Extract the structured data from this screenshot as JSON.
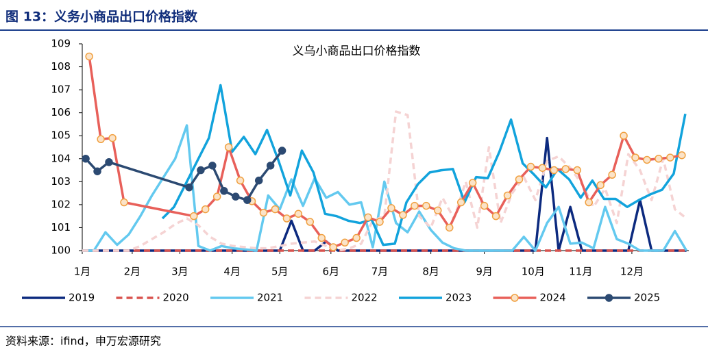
{
  "header": {
    "title": "图 13：义务小商品出口价格指数"
  },
  "chart_data": {
    "type": "line",
    "title": "义乌小商品出口价格指数",
    "xlim": [
      0,
      52.2
    ],
    "xticks": [
      {
        "value": 0,
        "label": "1月"
      },
      {
        "value": 4.3,
        "label": "2月"
      },
      {
        "value": 8.4,
        "label": "3月"
      },
      {
        "value": 12.9,
        "label": "4月"
      },
      {
        "value": 17.0,
        "label": "5月"
      },
      {
        "value": 21.4,
        "label": "6月"
      },
      {
        "value": 25.6,
        "label": "7月"
      },
      {
        "value": 30.0,
        "label": "8月"
      },
      {
        "value": 34.6,
        "label": "9月"
      },
      {
        "value": 38.8,
        "label": "10月"
      },
      {
        "value": 42.9,
        "label": "11月"
      },
      {
        "value": 47.3,
        "label": "12月"
      }
    ],
    "ylim": [
      100,
      109
    ],
    "yticks": [
      100,
      101,
      102,
      103,
      104,
      105,
      106,
      107,
      108,
      109
    ],
    "series": [
      {
        "name": "2019",
        "color": "#0c2a7f",
        "dash": false,
        "marker": false,
        "x": [
          0,
          1,
          2,
          3,
          4,
          5,
          6,
          7,
          8,
          9,
          10,
          11,
          12,
          13,
          14,
          15,
          16,
          17,
          18,
          19,
          20,
          21,
          22,
          23,
          24,
          25,
          26,
          27,
          28,
          29,
          30,
          31,
          32,
          33,
          34,
          35,
          36,
          37,
          38,
          39,
          40,
          41,
          42,
          43,
          44,
          45,
          46,
          47,
          48,
          49,
          50,
          51,
          52
        ],
        "values": [
          100,
          100,
          100,
          100,
          100,
          100,
          100,
          100,
          100,
          100,
          100,
          100,
          100,
          100,
          100,
          100,
          100,
          100,
          101.3,
          100,
          100,
          100.4,
          100,
          100,
          100,
          100,
          100,
          100,
          100,
          100,
          100,
          100,
          100,
          100,
          100,
          100,
          100,
          100,
          100,
          100,
          104.9,
          100,
          101.9,
          100,
          100,
          100,
          100,
          100,
          102.2,
          100,
          100,
          100,
          100
        ]
      },
      {
        "name": "2020",
        "color": "#d9534f",
        "dash": true,
        "marker": false,
        "x": [
          0,
          1,
          2,
          3,
          4,
          5,
          6,
          7,
          8,
          9,
          10,
          11,
          12,
          13,
          14,
          15,
          16,
          17,
          18,
          19,
          20,
          21,
          22,
          23,
          24,
          25,
          26,
          27,
          28,
          29,
          30,
          31,
          32,
          33,
          34,
          35,
          36,
          37,
          38,
          39,
          40,
          41,
          42,
          43,
          44,
          45,
          46,
          47,
          48,
          49,
          50,
          51,
          52
        ],
        "values": [
          100,
          100,
          100,
          100,
          100,
          100,
          100,
          100,
          100,
          100,
          100,
          100,
          100,
          100,
          100,
          100,
          100,
          100,
          100,
          100,
          100,
          100,
          100,
          100,
          100,
          100,
          100,
          100,
          100,
          100,
          100,
          100,
          100,
          100,
          100,
          100,
          100,
          100,
          100,
          100,
          100,
          100,
          100,
          100,
          100,
          100,
          100,
          100,
          100,
          100,
          100,
          100,
          100
        ]
      },
      {
        "name": "2021",
        "color": "#63c9ef",
        "dash": false,
        "marker": false,
        "x": [
          0,
          1,
          2,
          3,
          4,
          5,
          6,
          7,
          8,
          9,
          10,
          11,
          12,
          13,
          14,
          15,
          16,
          17,
          18,
          19,
          20,
          21,
          22,
          23,
          24,
          25,
          26,
          27,
          28,
          29,
          30,
          31,
          32,
          33,
          34,
          35,
          36,
          37,
          38,
          39,
          40,
          41,
          42,
          43,
          44,
          45,
          46,
          47,
          48,
          49,
          50,
          51,
          52
        ],
        "values": [
          100,
          100,
          100.8,
          100.25,
          100.7,
          101.5,
          102.4,
          103.2,
          104.0,
          105.45,
          100.2,
          100.0,
          100.2,
          100.1,
          100.05,
          100.0,
          102.4,
          101.8,
          103.1,
          101.95,
          103.15,
          102.3,
          102.55,
          102.0,
          102.1,
          100.15,
          103.0,
          101.2,
          100.8,
          101.7,
          100.9,
          100.35,
          100.1,
          100,
          100,
          100,
          100,
          100,
          100.6,
          100,
          101.2,
          101.9,
          100.3,
          100.35,
          100.1,
          101.9,
          100.5,
          100.3,
          100,
          100,
          100,
          100.85,
          100
        ]
      },
      {
        "name": "2022",
        "color": "#f5d3d3",
        "dash": true,
        "marker": false,
        "x": [
          0,
          1,
          2,
          3,
          4,
          5,
          6,
          7,
          8,
          9,
          10,
          11,
          12,
          13,
          14,
          15,
          16,
          17,
          18,
          19,
          20,
          21,
          22,
          23,
          24,
          25,
          26,
          27,
          28,
          29,
          30,
          31,
          32,
          33,
          34,
          35,
          36,
          37,
          38,
          39,
          40,
          41,
          42,
          43,
          44,
          45,
          46,
          47,
          48,
          49,
          50,
          51,
          52
        ],
        "values": [
          100,
          100,
          100,
          100,
          100,
          100.2,
          100.5,
          100.8,
          101.15,
          101.4,
          101.1,
          100.6,
          100.3,
          100.2,
          100.15,
          100.1,
          100.1,
          100.2,
          100.3,
          100.35,
          100.4,
          100.2,
          100.0,
          100.1,
          100.3,
          101.3,
          101.5,
          106.05,
          105.9,
          101.5,
          101.0,
          102.3,
          101.4,
          103.0,
          101.0,
          104.5,
          101.2,
          102.5,
          103.2,
          102.2,
          103.9,
          104.1,
          103.6,
          102.9,
          101.9,
          102.7,
          101.2,
          104.2,
          103.5,
          102.2,
          104.0,
          101.8,
          101.4
        ]
      },
      {
        "name": "2023",
        "color": "#12a3dc",
        "dash": false,
        "marker": false,
        "x": [
          6.9,
          7.9,
          8.9,
          9.9,
          10.9,
          11.9,
          12.9,
          13.9,
          14.9,
          15.9,
          16.9,
          17.9,
          18.9,
          19.9,
          20.9,
          21.9,
          22.9,
          23.9,
          24.9,
          25.9,
          26.9,
          27.9,
          28.9,
          29.9,
          30.9,
          31.9,
          32.9,
          33.9,
          34.9,
          35.9,
          36.9,
          37.9,
          38.9,
          39.9,
          40.9,
          41.9,
          42.9,
          43.9,
          44.9,
          45.9,
          46.9,
          47.9,
          48.9,
          49.9,
          50.9,
          51.9
        ],
        "values": [
          101.4,
          101.9,
          102.9,
          103.9,
          104.9,
          107.2,
          104.3,
          104.95,
          104.2,
          105.25,
          103.9,
          102.4,
          104.35,
          103.4,
          101.6,
          101.5,
          101.3,
          101.2,
          101.35,
          100.25,
          100.3,
          102.1,
          102.9,
          103.4,
          103.5,
          103.55,
          102.1,
          103.2,
          103.15,
          104.3,
          105.7,
          103.8,
          103.3,
          102.75,
          103.55,
          103.1,
          102.3,
          103.05,
          102.25,
          102.25,
          101.9,
          102.2,
          102.45,
          102.65,
          103.35,
          105.95
        ]
      },
      {
        "name": "2024",
        "color": "#e8605a",
        "dash": false,
        "marker": true,
        "marker_color": "#f0a040",
        "x": [
          0.6,
          1.6,
          2.6,
          3.6,
          9.6,
          10.6,
          11.6,
          12.6,
          13.6,
          14.6,
          15.6,
          16.6,
          17.6,
          18.6,
          19.6,
          20.6,
          21.6,
          22.6,
          23.6,
          24.6,
          25.6,
          26.6,
          27.6,
          28.6,
          29.6,
          30.6,
          31.6,
          32.6,
          33.6,
          34.6,
          35.6,
          36.6,
          37.6,
          38.6,
          39.6,
          40.6,
          41.6,
          42.6,
          43.6,
          44.6,
          45.6,
          46.6,
          47.6,
          48.6,
          49.6,
          50.6,
          51.6
        ],
        "values": [
          108.45,
          104.85,
          104.9,
          102.1,
          101.5,
          101.8,
          102.35,
          104.5,
          103.05,
          102.15,
          101.65,
          101.8,
          101.4,
          101.6,
          101.25,
          100.55,
          100.15,
          100.35,
          100.55,
          101.45,
          101.25,
          101.85,
          101.55,
          101.95,
          101.95,
          101.75,
          101.0,
          102.1,
          102.95,
          101.95,
          101.5,
          102.4,
          103.1,
          103.65,
          103.6,
          103.5,
          103.55,
          103.5,
          102.1,
          102.85,
          103.3,
          105.0,
          104.05,
          103.95,
          104.0,
          104.05,
          104.15
        ]
      },
      {
        "name": "2025",
        "color": "#2c4a72",
        "dash": false,
        "marker": true,
        "marker_color": "#2c4a72",
        "x": [
          0.3,
          1.3,
          2.3,
          9.2,
          10.2,
          11.2,
          12.2,
          13.2,
          14.2,
          15.2,
          16.2,
          17.2
        ],
        "values": [
          104.0,
          103.45,
          103.85,
          102.75,
          103.5,
          103.7,
          102.6,
          102.35,
          102.2,
          103.05,
          103.7,
          104.35
        ]
      }
    ]
  },
  "footer": {
    "source": "资料来源：ifind，申万宏源研究"
  }
}
